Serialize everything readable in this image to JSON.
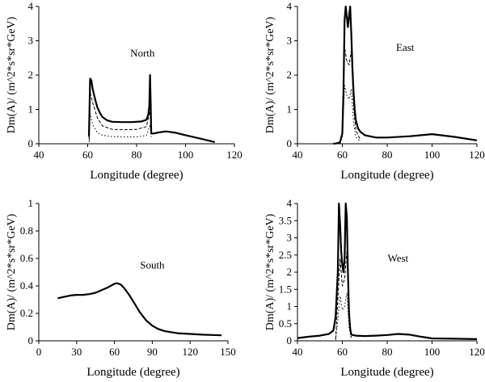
{
  "chart_data": [
    {
      "type": "line",
      "panel_label": "North",
      "xlabel": "Longitude (degree)",
      "ylabel": "Dm(A)/ (m^2*s*sr*GeV)",
      "xlim": [
        40,
        120
      ],
      "ylim": [
        0,
        4
      ],
      "xticks": [
        40,
        60,
        80,
        100,
        120
      ],
      "yticks": [
        0,
        1,
        2,
        3,
        4
      ],
      "series": [
        {
          "style": "solid",
          "x": [
            60.5,
            60.8,
            61,
            61.5,
            62,
            63,
            64,
            65,
            66,
            68,
            70,
            74,
            78,
            82,
            84,
            84.8,
            85.2,
            85.5,
            85.8,
            86,
            87,
            89,
            92,
            96,
            100,
            106,
            112
          ],
          "y": [
            0.2,
            1.2,
            1.9,
            1.85,
            1.6,
            1.3,
            1.05,
            0.9,
            0.78,
            0.68,
            0.64,
            0.63,
            0.63,
            0.65,
            0.7,
            0.85,
            1.1,
            2.0,
            1.1,
            0.3,
            0.3,
            0.33,
            0.36,
            0.32,
            0.25,
            0.15,
            0.05
          ]
        },
        {
          "style": "dashed",
          "x": [
            60.6,
            61,
            62,
            64,
            66,
            70,
            75,
            80,
            84,
            85.5,
            86
          ],
          "y": [
            0.1,
            1.5,
            1.2,
            0.75,
            0.52,
            0.42,
            0.41,
            0.42,
            0.5,
            0.95,
            0.3
          ]
        },
        {
          "style": "dotted",
          "x": [
            60.6,
            61,
            62,
            64,
            66,
            70,
            75,
            80,
            84,
            85.5,
            86
          ],
          "y": [
            0.05,
            0.9,
            0.55,
            0.32,
            0.25,
            0.21,
            0.2,
            0.2,
            0.24,
            0.55,
            0.2
          ]
        }
      ]
    },
    {
      "type": "line",
      "panel_label": "East",
      "xlabel": "Longitude (degree)",
      "ylabel": "Dm(A)/ (m^2*s*sr*GeV)",
      "xlim": [
        40,
        120
      ],
      "ylim": [
        0,
        4
      ],
      "xticks": [
        40,
        60,
        80,
        100,
        120
      ],
      "yticks": [
        0,
        1,
        2,
        3,
        4
      ],
      "series": [
        {
          "style": "solid",
          "x": [
            56,
            58,
            59,
            60,
            60.5,
            61,
            61.5,
            62,
            62.5,
            63,
            63.5,
            64,
            64.5,
            65,
            65.5,
            66,
            67,
            68,
            70,
            75,
            80,
            90,
            100,
            110,
            120
          ],
          "y": [
            0,
            0.02,
            0.05,
            0.3,
            1.5,
            3.6,
            4.0,
            3.7,
            3.4,
            3.7,
            4.0,
            3.2,
            2.2,
            1.5,
            1.0,
            0.7,
            0.45,
            0.35,
            0.25,
            0.18,
            0.18,
            0.22,
            0.28,
            0.2,
            0.1
          ]
        },
        {
          "style": "dashed",
          "x": [
            59,
            60,
            61,
            62,
            63,
            64,
            65,
            66,
            68
          ],
          "y": [
            0.02,
            0.3,
            2.8,
            2.4,
            2.3,
            2.7,
            1.1,
            0.4,
            0.12
          ]
        },
        {
          "style": "dotted",
          "x": [
            59,
            60,
            61,
            62,
            63,
            64,
            65,
            66,
            68
          ],
          "y": [
            0.01,
            0.2,
            1.7,
            1.4,
            1.3,
            1.6,
            0.6,
            0.2,
            0.06
          ]
        }
      ]
    },
    {
      "type": "line",
      "panel_label": "South",
      "xlabel": "Longitude (degree)",
      "ylabel": "Dm(A)/ (m^2*s*sr*GeV)",
      "xlim": [
        0,
        150
      ],
      "ylim": [
        0,
        1
      ],
      "xticks": [
        0,
        30,
        60,
        90,
        120,
        150
      ],
      "yticks": [
        0,
        0.2,
        0.4,
        0.6,
        0.8,
        1
      ],
      "series": [
        {
          "style": "solid",
          "x": [
            15,
            20,
            25,
            30,
            35,
            40,
            45,
            50,
            55,
            60,
            62,
            65,
            68,
            72,
            76,
            80,
            85,
            90,
            95,
            100,
            110,
            120,
            130,
            145
          ],
          "y": [
            0.31,
            0.32,
            0.33,
            0.335,
            0.335,
            0.34,
            0.35,
            0.37,
            0.39,
            0.415,
            0.42,
            0.41,
            0.38,
            0.33,
            0.27,
            0.21,
            0.15,
            0.11,
            0.085,
            0.07,
            0.055,
            0.05,
            0.045,
            0.04
          ]
        }
      ]
    },
    {
      "type": "line",
      "panel_label": "West",
      "xlabel": "Longitude (degree)",
      "ylabel": "Dm(A)/ (m^2*s*sr*GeV)",
      "xlim": [
        40,
        120
      ],
      "ylim": [
        0,
        4
      ],
      "xticks": [
        40,
        60,
        80,
        100,
        120
      ],
      "yticks": [
        0,
        0.5,
        1,
        1.5,
        2,
        2.5,
        3,
        3.5,
        4
      ],
      "series": [
        {
          "style": "solid",
          "x": [
            40,
            45,
            50,
            54,
            56,
            57,
            58,
            58.5,
            59,
            59.5,
            60,
            60.5,
            61,
            61.5,
            62,
            62.5,
            63,
            63.5,
            64,
            66,
            70,
            75,
            80,
            85,
            90,
            95,
            100,
            110,
            120
          ],
          "y": [
            0.08,
            0.12,
            0.15,
            0.2,
            0.3,
            0.7,
            2.0,
            4.0,
            3.4,
            2.6,
            2.2,
            2.0,
            2.4,
            4.0,
            3.6,
            2.0,
            0.8,
            0.35,
            0.18,
            0.15,
            0.14,
            0.15,
            0.17,
            0.2,
            0.18,
            0.12,
            0.07,
            0.06,
            0.05
          ]
        },
        {
          "style": "dashed",
          "x": [
            57,
            58,
            59,
            60,
            61,
            62,
            63,
            64
          ],
          "y": [
            0.05,
            1.2,
            2.4,
            1.6,
            1.8,
            2.6,
            0.9,
            0.1
          ]
        },
        {
          "style": "dotted",
          "x": [
            57,
            58,
            59,
            60,
            61,
            62,
            63,
            64
          ],
          "y": [
            0.03,
            0.6,
            1.3,
            0.9,
            1.0,
            1.4,
            0.4,
            0.05
          ]
        }
      ]
    }
  ]
}
